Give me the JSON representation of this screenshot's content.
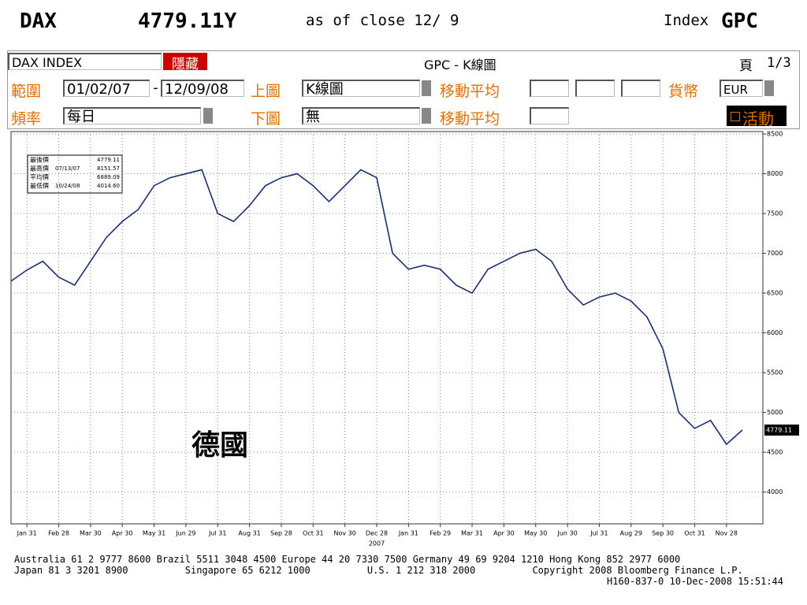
{
  "header": {
    "ticker": "DAX",
    "price": "4779.11Y",
    "asof": "as of close 12/ 9",
    "index_label": "Index",
    "index_code": "GPC"
  },
  "toolbar": {
    "security": "DAX INDEX",
    "hide_button": "隱藏",
    "screen_title": "GPC - K線圖",
    "page_label": "頁",
    "page": "1/3",
    "range_label": "範圍",
    "range_start": "01/02/07",
    "range_sep": "-",
    "range_end": "12/09/08",
    "upper_label": "上圖",
    "upper_value": "K線圖",
    "ma_label_1": "移動平均",
    "currency_label": "貨幣",
    "currency": "EUR",
    "freq_label": "頻率",
    "freq_value": "每日",
    "lower_label": "下圖",
    "lower_value": "無",
    "ma_label_2": "移動平均",
    "live_button": "活動"
  },
  "chart_data": {
    "type": "line",
    "annotation": "德國",
    "year_label": "2007",
    "stats": [
      {
        "label": "最後價",
        "date": "",
        "value": "4779.11"
      },
      {
        "label": "最高價",
        "date": "07/13/07",
        "value": "8151.57"
      },
      {
        "label": "平均價",
        "date": "",
        "value": "6889.09"
      },
      {
        "label": "最低價",
        "date": "10/24/08",
        "value": "4014.60"
      }
    ],
    "categories": [
      null,
      "Jan 31",
      null,
      "Feb 28",
      null,
      "Mar 30",
      null,
      "Apr 30",
      null,
      "May 31",
      null,
      "Jun 29",
      null,
      "Jul 31",
      null,
      "Aug 31",
      null,
      "Sep 28",
      null,
      "Oct 31",
      null,
      "Nov 30",
      null,
      "Dec 28",
      null,
      "Jan 31",
      null,
      "Feb 29",
      null,
      "Mar 31",
      null,
      "Apr 30",
      null,
      "May 30",
      null,
      "Jun 30",
      null,
      "Jul 31",
      null,
      "Aug 29",
      null,
      "Sep 30",
      null,
      "Oct 31",
      null,
      "Nov 28",
      null
    ],
    "series": [
      {
        "name": "DAX",
        "color": "#1b2f6e",
        "values": [
          6650,
          6790,
          6900,
          6700,
          6600,
          6900,
          7200,
          7400,
          7550,
          7850,
          7950,
          8000,
          8050,
          7500,
          7400,
          7600,
          7850,
          7950,
          8000,
          7850,
          7650,
          7850,
          8050,
          7950,
          7000,
          6800,
          6850,
          6800,
          6600,
          6500,
          6800,
          6900,
          7000,
          7050,
          6900,
          6550,
          6350,
          6450,
          6500,
          6400,
          6200,
          5800,
          5000,
          4800,
          4900,
          4600,
          4779.11
        ]
      }
    ],
    "ylim": [
      3600,
      8530
    ],
    "yticks": [
      4000,
      4500,
      5000,
      5500,
      6000,
      6500,
      7000,
      7500,
      8000,
      8500
    ],
    "grid": true
  },
  "footer": {
    "line1": "Australia 61 2 9777 8600 Brazil 5511 3048 4500 Europe 44 20 7330 7500 Germany 49 69 9204 1210 Hong Kong 852 2977 6000",
    "line2": "Japan 81 3 3201 8900          Singapore 65 6212 1000          U.S. 1 212 318 2000          Copyright 2008 Bloomberg Finance L.P.",
    "line3": "H160-837-0 10-Dec-2008 15:51:44"
  }
}
